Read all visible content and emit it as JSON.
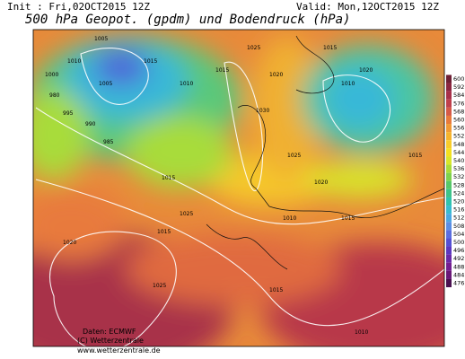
{
  "header": {
    "init": "Init : Fri,02OCT2015 12Z",
    "valid": "Valid: Mon,12OCT2015 12Z",
    "title": "500 hPa Geopot. (gpdm) und Bodendruck (hPa)"
  },
  "colorbar": {
    "levels": [
      "600",
      "592",
      "584",
      "576",
      "568",
      "560",
      "556",
      "552",
      "548",
      "544",
      "540",
      "536",
      "532",
      "528",
      "524",
      "520",
      "516",
      "512",
      "508",
      "504",
      "500",
      "496",
      "492",
      "488",
      "484",
      "476"
    ],
    "colors": [
      "#6e1f35",
      "#8c2540",
      "#a8304a",
      "#c0404c",
      "#d65a48",
      "#e87a3c",
      "#f09a36",
      "#f5b42e",
      "#f8cc2a",
      "#f4e020",
      "#d8e62a",
      "#a8dc3a",
      "#7ed24e",
      "#58c86a",
      "#3ec48a",
      "#30c4ae",
      "#38bcd0",
      "#4aa8e2",
      "#5a8ee4",
      "#5a6ee0",
      "#5450d4",
      "#5c38c0",
      "#6a2aa8",
      "#741e90",
      "#6a1878",
      "#4a1050"
    ]
  },
  "map": {
    "isobar_labels": [
      "1005",
      "1010",
      "1000",
      "980",
      "995",
      "990",
      "985",
      "1005",
      "1015",
      "1010",
      "1015",
      "1025",
      "1020",
      "1015",
      "1030",
      "1010",
      "1025",
      "1020",
      "1015",
      "1020",
      "1015",
      "1025",
      "1015",
      "1010",
      "1015",
      "1020",
      "1025",
      "1015",
      "1010"
    ]
  },
  "footer": {
    "source": "Daten: ECMWF",
    "copyright": "(C) Wetterzentrale",
    "url": "www.wetterzentrale.de"
  }
}
